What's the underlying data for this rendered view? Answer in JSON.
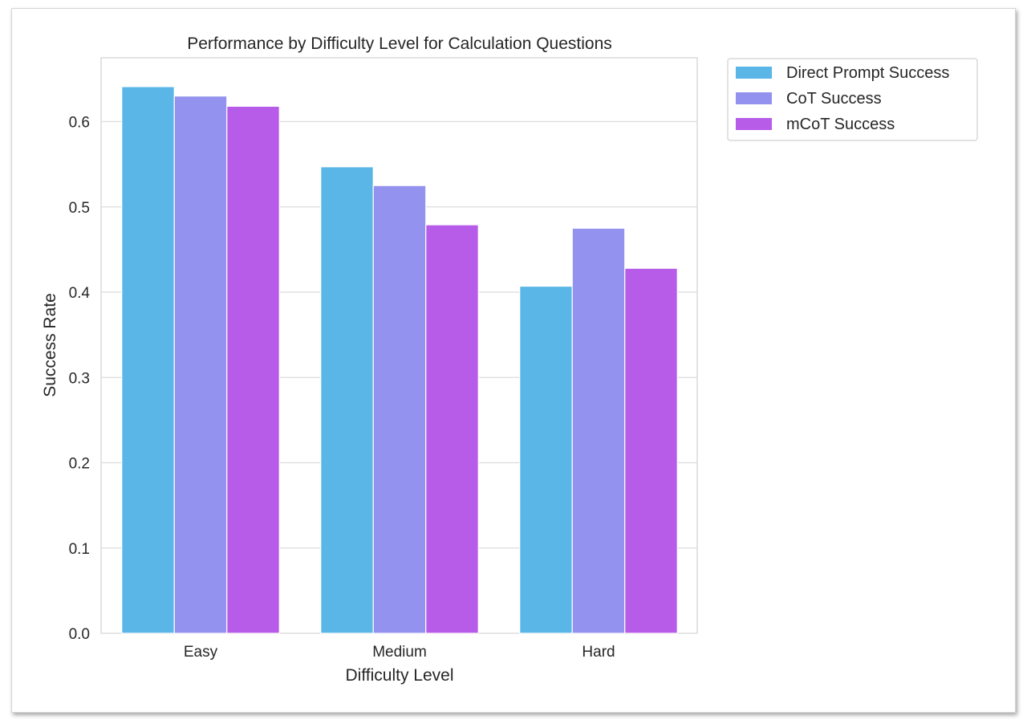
{
  "chart_data": {
    "type": "bar",
    "title": "Performance by Difficulty Level for Calculation Questions",
    "xlabel": "Difficulty Level",
    "ylabel": "Success Rate",
    "categories": [
      "Easy",
      "Medium",
      "Hard"
    ],
    "series": [
      {
        "name": "Direct Prompt Success",
        "color": "#5ab6e6",
        "values": [
          0.641,
          0.547,
          0.407
        ]
      },
      {
        "name": "CoT Success",
        "color": "#9392ef",
        "values": [
          0.63,
          0.525,
          0.475
        ]
      },
      {
        "name": "mCoT Success",
        "color": "#b65ce8",
        "values": [
          0.618,
          0.479,
          0.428
        ]
      }
    ],
    "ylim": [
      0,
      0.675
    ],
    "yticks": [
      0.0,
      0.1,
      0.2,
      0.3,
      0.4,
      0.5,
      0.6
    ],
    "ytick_labels": [
      "0.0",
      "0.1",
      "0.2",
      "0.3",
      "0.4",
      "0.5",
      "0.6"
    ],
    "grid": "horizontal",
    "legend_position": "outside-top-right"
  }
}
